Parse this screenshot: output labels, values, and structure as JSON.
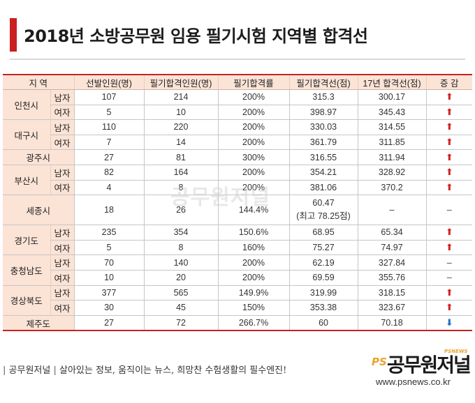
{
  "title": "2018년 소방공무원 임용 필기시험 지역별 합격선",
  "colors": {
    "accent": "#c8211f",
    "header_bg": "#fbe3d6",
    "up": "#d41f1f",
    "down": "#1e6fc0"
  },
  "table": {
    "headers": [
      "지 역",
      "선발인원(명)",
      "필기합격인원(명)",
      "필기합격률",
      "필기합격선(점)",
      "17년 합격선(점)",
      "증 감"
    ],
    "rows": [
      {
        "region": "인천시",
        "gender": "남자",
        "selected": "107",
        "passed": "214",
        "rate": "200%",
        "cutoff": "315.3",
        "cutoff_note": "",
        "prev": "300.17",
        "trend": "up"
      },
      {
        "region": "",
        "gender": "여자",
        "selected": "5",
        "passed": "10",
        "rate": "200%",
        "cutoff": "398.97",
        "cutoff_note": "",
        "prev": "345.43",
        "trend": "up"
      },
      {
        "region": "대구시",
        "gender": "남자",
        "selected": "110",
        "passed": "220",
        "rate": "200%",
        "cutoff": "330.03",
        "cutoff_note": "",
        "prev": "314.55",
        "trend": "up"
      },
      {
        "region": "",
        "gender": "여자",
        "selected": "7",
        "passed": "14",
        "rate": "200%",
        "cutoff": "361.79",
        "cutoff_note": "",
        "prev": "311.85",
        "trend": "up"
      },
      {
        "region": "광주시",
        "gender": "",
        "selected": "27",
        "passed": "81",
        "rate": "300%",
        "cutoff": "316.55",
        "cutoff_note": "",
        "prev": "311.94",
        "trend": "up"
      },
      {
        "region": "부산시",
        "gender": "남자",
        "selected": "82",
        "passed": "164",
        "rate": "200%",
        "cutoff": "354.21",
        "cutoff_note": "",
        "prev": "328.92",
        "trend": "up"
      },
      {
        "region": "",
        "gender": "여자",
        "selected": "4",
        "passed": "8",
        "rate": "200%",
        "cutoff": "381.06",
        "cutoff_note": "",
        "prev": "370.2",
        "trend": "up"
      },
      {
        "region": "세종시",
        "gender": "",
        "selected": "18",
        "passed": "26",
        "rate": "144.4%",
        "cutoff": "60.47",
        "cutoff_note": "(최고 78.25점)",
        "prev": "–",
        "trend": "none"
      },
      {
        "region": "경기도",
        "gender": "남자",
        "selected": "235",
        "passed": "354",
        "rate": "150.6%",
        "cutoff": "68.95",
        "cutoff_note": "",
        "prev": "65.34",
        "trend": "up"
      },
      {
        "region": "",
        "gender": "여자",
        "selected": "5",
        "passed": "8",
        "rate": "160%",
        "cutoff": "75.27",
        "cutoff_note": "",
        "prev": "74.97",
        "trend": "up"
      },
      {
        "region": "충청남도",
        "gender": "남자",
        "selected": "70",
        "passed": "140",
        "rate": "200%",
        "cutoff": "62.19",
        "cutoff_note": "",
        "prev": "327.84",
        "trend": "none"
      },
      {
        "region": "",
        "gender": "여자",
        "selected": "10",
        "passed": "20",
        "rate": "200%",
        "cutoff": "69.59",
        "cutoff_note": "",
        "prev": "355.76",
        "trend": "none"
      },
      {
        "region": "경상북도",
        "gender": "남자",
        "selected": "377",
        "passed": "565",
        "rate": "149.9%",
        "cutoff": "319.99",
        "cutoff_note": "",
        "prev": "318.15",
        "trend": "up"
      },
      {
        "region": "",
        "gender": "여자",
        "selected": "30",
        "passed": "45",
        "rate": "150%",
        "cutoff": "353.38",
        "cutoff_note": "",
        "prev": "323.67",
        "trend": "up"
      },
      {
        "region": "제주도",
        "gender": "",
        "selected": "27",
        "passed": "72",
        "rate": "266.7%",
        "cutoff": "60",
        "cutoff_note": "",
        "prev": "70.18",
        "trend": "down"
      }
    ]
  },
  "trend_symbols": {
    "up": "⬆",
    "down": "⬇",
    "none": "–"
  },
  "watermark": "공무원저널",
  "footer": {
    "brand": "공무원저널",
    "separator": "|",
    "slogan": "살아있는 정보, 움직이는 뉴스, 희망찬 수험생활의 필수엔진!",
    "logo_ps": "PS",
    "logo_name": "공무원저널",
    "logo_small": "PSNEWS",
    "url": "www.psnews.co.kr"
  }
}
